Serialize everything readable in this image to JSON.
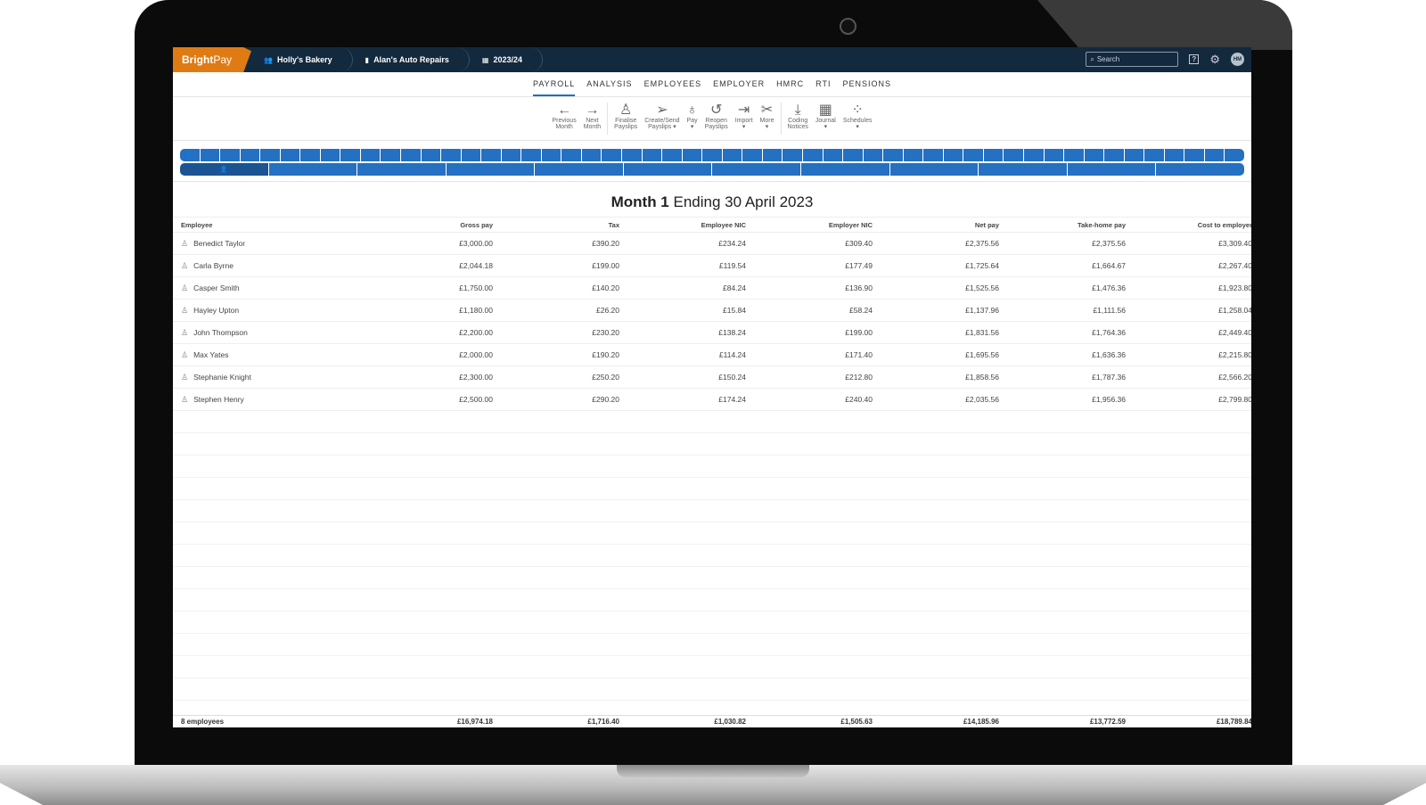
{
  "app": {
    "logo": "BrightPay",
    "logo_bold": "Bright",
    "logo_light": "Pay"
  },
  "breadcrumbs": [
    {
      "icon": "people-icon",
      "label": "Holly's Bakery"
    },
    {
      "icon": "building-icon",
      "label": "Alan's Auto Repairs"
    },
    {
      "icon": "calendar-icon",
      "label": "2023/24"
    }
  ],
  "search": {
    "placeholder": "Search"
  },
  "user": {
    "initials": "HM"
  },
  "tabs": [
    {
      "label": "PAYROLL",
      "active": true
    },
    {
      "label": "ANALYSIS"
    },
    {
      "label": "EMPLOYEES"
    },
    {
      "label": "EMPLOYER"
    },
    {
      "label": "HMRC"
    },
    {
      "label": "RTI"
    },
    {
      "label": "PENSIONS"
    }
  ],
  "toolbar": [
    {
      "icon": "arrow-left-icon",
      "l1": "Previous",
      "l2": "Month"
    },
    {
      "icon": "arrow-right-icon",
      "l1": "Next",
      "l2": "Month"
    },
    {
      "icon": "stamp-icon",
      "l1": "Finalise",
      "l2": "Payslips"
    },
    {
      "icon": "paper-plane-icon",
      "l1": "Create/Send",
      "l2": "Payslips ▾"
    },
    {
      "icon": "money-bag-icon",
      "l1": "Pay",
      "l2": "▾"
    },
    {
      "icon": "history-icon",
      "l1": "Reopen",
      "l2": "Payslips"
    },
    {
      "icon": "import-icon",
      "l1": "Import",
      "l2": "▾"
    },
    {
      "icon": "tools-icon",
      "l1": "More",
      "l2": "▾"
    },
    {
      "icon": "download-icon",
      "l1": "Coding",
      "l2": "Notices"
    },
    {
      "icon": "grid-icon",
      "l1": "Journal",
      "l2": "▾"
    },
    {
      "icon": "dots-grid-icon",
      "l1": "Schedules",
      "l2": "▾"
    }
  ],
  "period": {
    "weeks": 52,
    "months": 12,
    "selected_month": 1,
    "title_bold": "Month 1",
    "title_rest": " Ending 30 April 2023"
  },
  "table": {
    "columns": [
      "Employee",
      "Gross pay",
      "Tax",
      "Employee NIC",
      "Employer NIC",
      "Net pay",
      "Take-home pay",
      "Cost to employer"
    ],
    "rows": [
      [
        "Benedict Taylor",
        "£3,000.00",
        "£390.20",
        "£234.24",
        "£309.40",
        "£2,375.56",
        "£2,375.56",
        "£3,309.40"
      ],
      [
        "Carla Byrne",
        "£2,044.18",
        "£199.00",
        "£119.54",
        "£177.49",
        "£1,725.64",
        "£1,664.67",
        "£2,267.40"
      ],
      [
        "Casper Smith",
        "£1,750.00",
        "£140.20",
        "£84.24",
        "£136.90",
        "£1,525.56",
        "£1,476.36",
        "£1,923.80"
      ],
      [
        "Hayley Upton",
        "£1,180.00",
        "£26.20",
        "£15.84",
        "£58.24",
        "£1,137.96",
        "£1,111.56",
        "£1,258.04"
      ],
      [
        "John Thompson",
        "£2,200.00",
        "£230.20",
        "£138.24",
        "£199.00",
        "£1,831.56",
        "£1,764.36",
        "£2,449.40"
      ],
      [
        "Max Yates",
        "£2,000.00",
        "£190.20",
        "£114.24",
        "£171.40",
        "£1,695.56",
        "£1,636.36",
        "£2,215.80"
      ],
      [
        "Stephanie Knight",
        "£2,300.00",
        "£250.20",
        "£150.24",
        "£212.80",
        "£1,858.56",
        "£1,787.36",
        "£2,566.20"
      ],
      [
        "Stephen Henry",
        "£2,500.00",
        "£290.20",
        "£174.24",
        "£240.40",
        "£2,035.56",
        "£1,956.36",
        "£2,799.80"
      ]
    ],
    "footer": [
      "8 employees",
      "£16,974.18",
      "£1,716.40",
      "£1,030.82",
      "£1,505.63",
      "£14,185.96",
      "£13,772.59",
      "£18,789.84"
    ]
  },
  "colors": {
    "topbar": "#13293d",
    "brand": "#e07b13",
    "accent": "#2470c2"
  }
}
